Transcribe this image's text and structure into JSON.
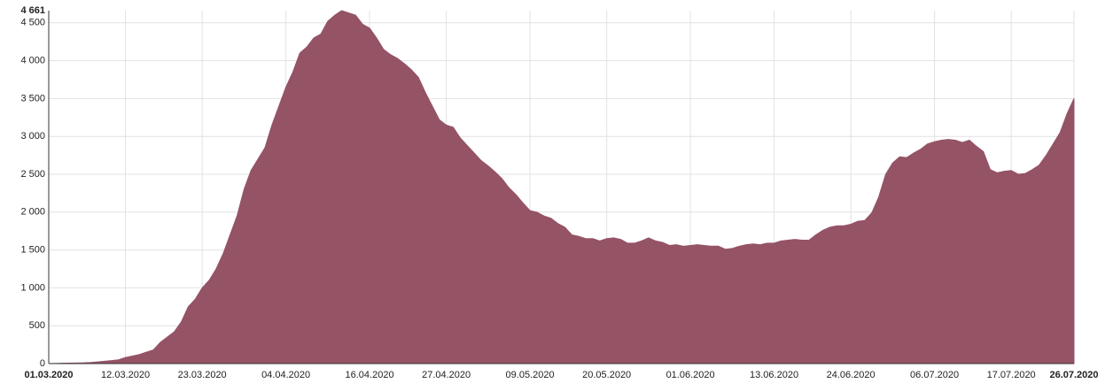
{
  "chart_data": {
    "type": "area",
    "color": "#955366",
    "categories": [
      "01.03.2020",
      null,
      null,
      null,
      null,
      null,
      null,
      null,
      null,
      null,
      null,
      "12.03.2020",
      null,
      null,
      null,
      null,
      null,
      null,
      null,
      null,
      null,
      null,
      "23.03.2020",
      null,
      null,
      null,
      null,
      null,
      null,
      null,
      null,
      null,
      null,
      null,
      "04.04.2020",
      null,
      null,
      null,
      null,
      null,
      null,
      null,
      null,
      null,
      null,
      null,
      "16.04.2020",
      null,
      null,
      null,
      null,
      null,
      null,
      null,
      null,
      null,
      null,
      "27.04.2020",
      null,
      null,
      null,
      null,
      null,
      null,
      null,
      null,
      null,
      null,
      null,
      "09.05.2020",
      null,
      null,
      null,
      null,
      null,
      null,
      null,
      null,
      null,
      null,
      "20.05.2020",
      null,
      null,
      null,
      null,
      null,
      null,
      null,
      null,
      null,
      null,
      null,
      "01.06.2020",
      null,
      null,
      null,
      null,
      null,
      null,
      null,
      null,
      null,
      null,
      null,
      "13.06.2020",
      null,
      null,
      null,
      null,
      null,
      null,
      null,
      null,
      null,
      null,
      "24.06.2020",
      null,
      null,
      null,
      null,
      null,
      null,
      null,
      null,
      null,
      null,
      null,
      "06.07.2020",
      null,
      null,
      null,
      null,
      null,
      null,
      null,
      null,
      null,
      null,
      "17.07.2020",
      null,
      null,
      null,
      null,
      null,
      null,
      null,
      null,
      "26.07.2020"
    ],
    "values": [
      0,
      2,
      4,
      6,
      8,
      10,
      15,
      22,
      30,
      40,
      50,
      80,
      100,
      120,
      150,
      180,
      280,
      350,
      420,
      550,
      750,
      850,
      1000,
      1100,
      1250,
      1450,
      1700,
      1950,
      2300,
      2550,
      2700,
      2850,
      3150,
      3400,
      3650,
      3850,
      4100,
      4180,
      4300,
      4350,
      4520,
      4600,
      4661,
      4630,
      4600,
      4480,
      4430,
      4300,
      4150,
      4080,
      4030,
      3960,
      3880,
      3780,
      3580,
      3400,
      3220,
      3150,
      3120,
      2980,
      2880,
      2780,
      2680,
      2610,
      2530,
      2440,
      2320,
      2230,
      2120,
      2020,
      2000,
      1950,
      1920,
      1850,
      1800,
      1700,
      1680,
      1650,
      1650,
      1620,
      1650,
      1660,
      1640,
      1590,
      1590,
      1620,
      1660,
      1620,
      1600,
      1560,
      1570,
      1550,
      1560,
      1570,
      1560,
      1550,
      1550,
      1510,
      1520,
      1550,
      1570,
      1580,
      1570,
      1590,
      1590,
      1620,
      1630,
      1640,
      1630,
      1630,
      1700,
      1760,
      1800,
      1820,
      1820,
      1840,
      1880,
      1890,
      1990,
      2200,
      2500,
      2650,
      2730,
      2720,
      2780,
      2830,
      2900,
      2930,
      2950,
      2960,
      2950,
      2920,
      2950,
      2870,
      2800,
      2560,
      2520,
      2540,
      2550,
      2500,
      2510,
      2560,
      2620,
      2750,
      2900,
      3050,
      3300,
      3500
    ],
    "ylim": [
      0,
      4661
    ],
    "yticks": [
      0,
      500,
      {
        "value": 1000,
        "label": "1 000"
      },
      {
        "value": 1500,
        "label": "1 500"
      },
      {
        "value": 2000,
        "label": "2 000"
      },
      {
        "value": 2500,
        "label": "2 500"
      },
      {
        "value": 3000,
        "label": "3 000"
      },
      {
        "value": 3500,
        "label": "3 500"
      },
      {
        "value": 4000,
        "label": "4 000"
      },
      {
        "value": 4500,
        "label": "4 500"
      },
      {
        "value": 4661,
        "label": "4 661"
      }
    ],
    "grid": true
  }
}
